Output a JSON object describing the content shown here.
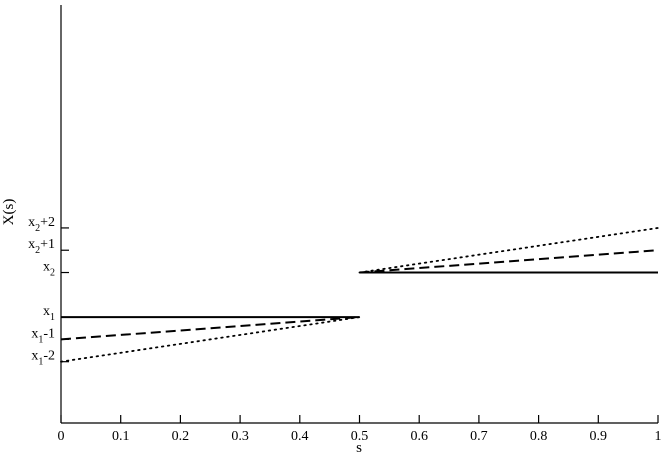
{
  "chart_data": {
    "type": "line",
    "xlabel": "s",
    "ylabel": "X(s)",
    "xlim": [
      0,
      1
    ],
    "x_ticks": [
      "0",
      "0.1",
      "0.2",
      "0.3",
      "0.4",
      "0.5",
      "0.6",
      "0.7",
      "0.8",
      "0.9",
      "1"
    ],
    "y_ticks": [
      {
        "value": 4,
        "base": "x",
        "sub": "2",
        "suffix": "+2"
      },
      {
        "value": 3,
        "base": "x",
        "sub": "2",
        "suffix": "+1"
      },
      {
        "value": 2,
        "base": "x",
        "sub": "2",
        "suffix": ""
      },
      {
        "value": 0,
        "base": "x",
        "sub": "1",
        "suffix": ""
      },
      {
        "value": -1,
        "base": "x",
        "sub": "1",
        "suffix": "-1"
      },
      {
        "value": -2,
        "base": "x",
        "sub": "1",
        "suffix": "-2"
      }
    ],
    "ylim": [
      -4.75,
      14
    ],
    "grid": false,
    "series": [
      {
        "style": "solid",
        "segments": [
          [
            [
              0,
              0
            ],
            [
              0.5,
              0
            ]
          ],
          [
            [
              0.5,
              2
            ],
            [
              1,
              2
            ]
          ]
        ]
      },
      {
        "style": "dashed",
        "segments": [
          [
            [
              0,
              -1
            ],
            [
              0.5,
              0
            ]
          ],
          [
            [
              0.5,
              2
            ],
            [
              1,
              3
            ]
          ]
        ]
      },
      {
        "style": "dotted",
        "segments": [
          [
            [
              0,
              -2
            ],
            [
              0.5,
              0
            ]
          ],
          [
            [
              0.5,
              2
            ],
            [
              1,
              4
            ]
          ]
        ]
      }
    ]
  }
}
